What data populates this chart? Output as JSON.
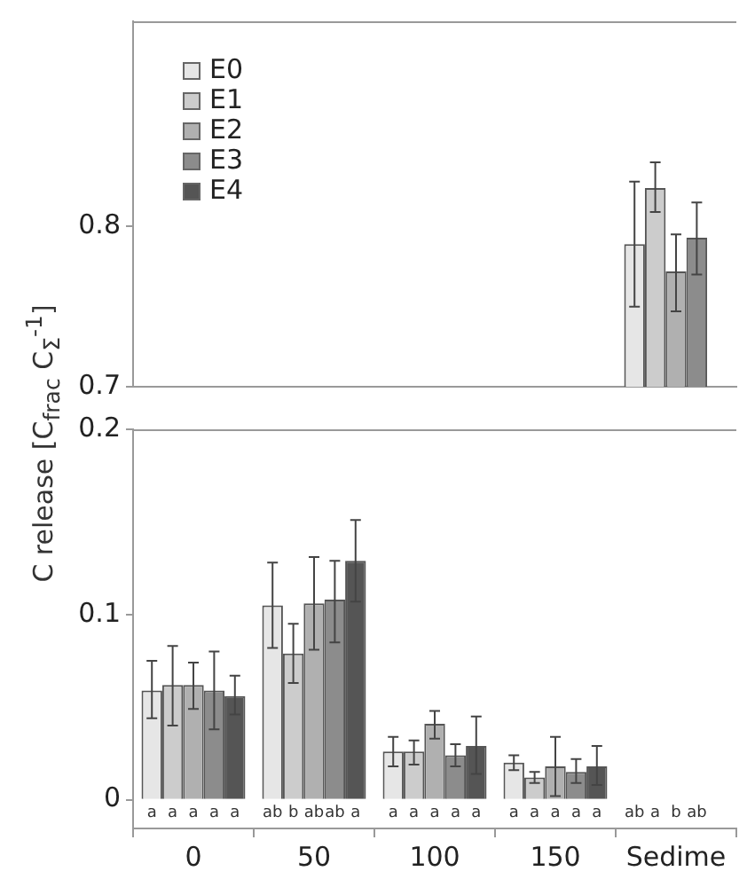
{
  "chart_data": [
    {
      "type": "bar",
      "ylabel": "C release [C$_{frac}$ C$_{Σ}$$^{-1}$]",
      "categories": [
        null,
        null,
        null,
        null,
        null
      ],
      "ylim": [
        0.7,
        0.928
      ],
      "yticks": [
        0.7,
        0.8
      ],
      "tick_labels": "y",
      "legend": "top left",
      "grid": false,
      "series": [
        {
          "name": "E0",
          "color": "#e6e6e6",
          "values": [
            null,
            null,
            null,
            null,
            0.789
          ],
          "errors": [
            null,
            null,
            null,
            null,
            [
              0.75,
              0.828
            ]
          ]
        },
        {
          "name": "E1",
          "color": "#cccccc",
          "values": [
            null,
            null,
            null,
            null,
            0.824
          ],
          "errors": [
            null,
            null,
            null,
            null,
            [
              0.809,
              0.84
            ]
          ]
        },
        {
          "name": "E2",
          "color": "#b0b0b0",
          "values": [
            null,
            null,
            null,
            null,
            0.772
          ],
          "errors": [
            null,
            null,
            null,
            null,
            [
              0.747,
              0.795
            ]
          ]
        },
        {
          "name": "E3",
          "color": "#8c8c8c",
          "values": [
            null,
            null,
            null,
            null,
            0.793
          ],
          "errors": [
            null,
            null,
            null,
            null,
            [
              0.77,
              0.815
            ]
          ]
        },
        {
          "name": "E4",
          "color": "#555555",
          "values": [
            null,
            null,
            null,
            null,
            null
          ],
          "errors": [
            null,
            null,
            null,
            null,
            null
          ]
        }
      ]
    },
    {
      "type": "bar",
      "categories": [
        "0",
        "50",
        "100",
        "150",
        "Sedime"
      ],
      "ylim": [
        -0.0155,
        0.2
      ],
      "yticks": [
        0,
        0.1,
        0.2
      ],
      "grid": false,
      "series": [
        {
          "color": "#e6e6e6",
          "values": [
            0.059,
            0.105,
            0.026,
            0.02,
            null
          ],
          "errors": [
            [
              0.044,
              0.075
            ],
            [
              0.082,
              0.128
            ],
            [
              0.018,
              0.034
            ],
            [
              0.016,
              0.024
            ],
            null
          ],
          "value_labels": [
            "a",
            "ab",
            "a",
            "a",
            "ab"
          ]
        },
        {
          "color": "#cccccc",
          "values": [
            0.062,
            0.079,
            0.026,
            0.012,
            null
          ],
          "errors": [
            [
              0.04,
              0.083
            ],
            [
              0.063,
              0.095
            ],
            [
              0.019,
              0.032
            ],
            [
              0.009,
              0.015
            ],
            null
          ],
          "value_labels": [
            "a",
            "b",
            "a",
            "a",
            "a"
          ]
        },
        {
          "color": "#b0b0b0",
          "values": [
            0.062,
            0.106,
            0.041,
            0.018,
            null
          ],
          "errors": [
            [
              0.049,
              0.074
            ],
            [
              0.081,
              0.131
            ],
            [
              0.033,
              0.048
            ],
            [
              0.002,
              0.034
            ],
            null
          ],
          "value_labels": [
            "a",
            "ab",
            "a",
            "a",
            "b"
          ]
        },
        {
          "color": "#8c8c8c",
          "values": [
            0.059,
            0.108,
            0.024,
            0.015,
            null
          ],
          "errors": [
            [
              0.038,
              0.08
            ],
            [
              0.085,
              0.129
            ],
            [
              0.018,
              0.03
            ],
            [
              0.009,
              0.022
            ],
            null
          ],
          "value_labels": [
            "a",
            "ab",
            "a",
            "a",
            "ab"
          ]
        },
        {
          "color": "#555555",
          "values": [
            0.056,
            0.129,
            0.029,
            0.018,
            null
          ],
          "errors": [
            [
              0.046,
              0.067
            ],
            [
              0.107,
              0.151
            ],
            [
              0.014,
              0.045
            ],
            [
              0.008,
              0.029
            ],
            null
          ],
          "value_labels": [
            "a",
            "a",
            "a",
            "a",
            null
          ]
        }
      ]
    }
  ]
}
